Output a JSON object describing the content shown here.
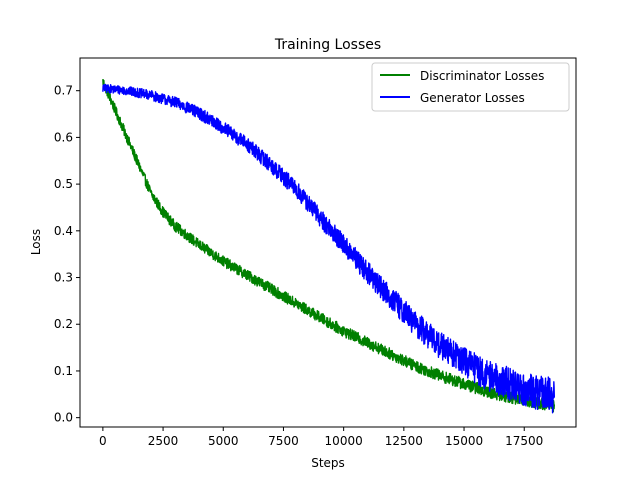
{
  "chart_data": {
    "type": "line",
    "title": "Training Losses",
    "xlabel": "Steps",
    "ylabel": "Loss",
    "xlim": [
      -950,
      19650
    ],
    "ylim": [
      -0.02,
      0.77
    ],
    "xticks": [
      0,
      2500,
      5000,
      7500,
      10000,
      12500,
      15000,
      17500
    ],
    "xtick_labels": [
      "0",
      "2500",
      "5000",
      "7500",
      "10000",
      "12500",
      "15000",
      "17500"
    ],
    "yticks": [
      0.0,
      0.1,
      0.2,
      0.3,
      0.4,
      0.5,
      0.6,
      0.7
    ],
    "ytick_labels": [
      "0.0",
      "0.1",
      "0.2",
      "0.3",
      "0.4",
      "0.5",
      "0.6",
      "0.7"
    ],
    "grid": false,
    "legend": "top-right",
    "series": [
      {
        "name": "Discriminator Losses",
        "color": "#008000",
        "x": [
          0,
          250,
          500,
          1000,
          1500,
          2000,
          2500,
          3000,
          3500,
          4000,
          5000,
          6000,
          7000,
          8000,
          9000,
          10000,
          11000,
          12000,
          13000,
          14000,
          15000,
          16000,
          17000,
          18000,
          18750
        ],
        "y": [
          0.72,
          0.69,
          0.66,
          0.6,
          0.54,
          0.48,
          0.44,
          0.41,
          0.39,
          0.37,
          0.335,
          0.305,
          0.275,
          0.245,
          0.215,
          0.185,
          0.16,
          0.135,
          0.11,
          0.09,
          0.072,
          0.055,
          0.043,
          0.032,
          0.025
        ]
      },
      {
        "name": "Generator Losses",
        "color": "#0000ff",
        "x": [
          0,
          500,
          1000,
          2000,
          3000,
          4000,
          5000,
          6000,
          7000,
          8000,
          9000,
          10000,
          11000,
          12000,
          13000,
          14000,
          15000,
          16000,
          17000,
          18000,
          18750
        ],
        "y": [
          0.705,
          0.703,
          0.7,
          0.69,
          0.675,
          0.652,
          0.62,
          0.585,
          0.54,
          0.49,
          0.43,
          0.37,
          0.31,
          0.255,
          0.2,
          0.155,
          0.12,
          0.09,
          0.07,
          0.055,
          0.048
        ]
      }
    ]
  }
}
